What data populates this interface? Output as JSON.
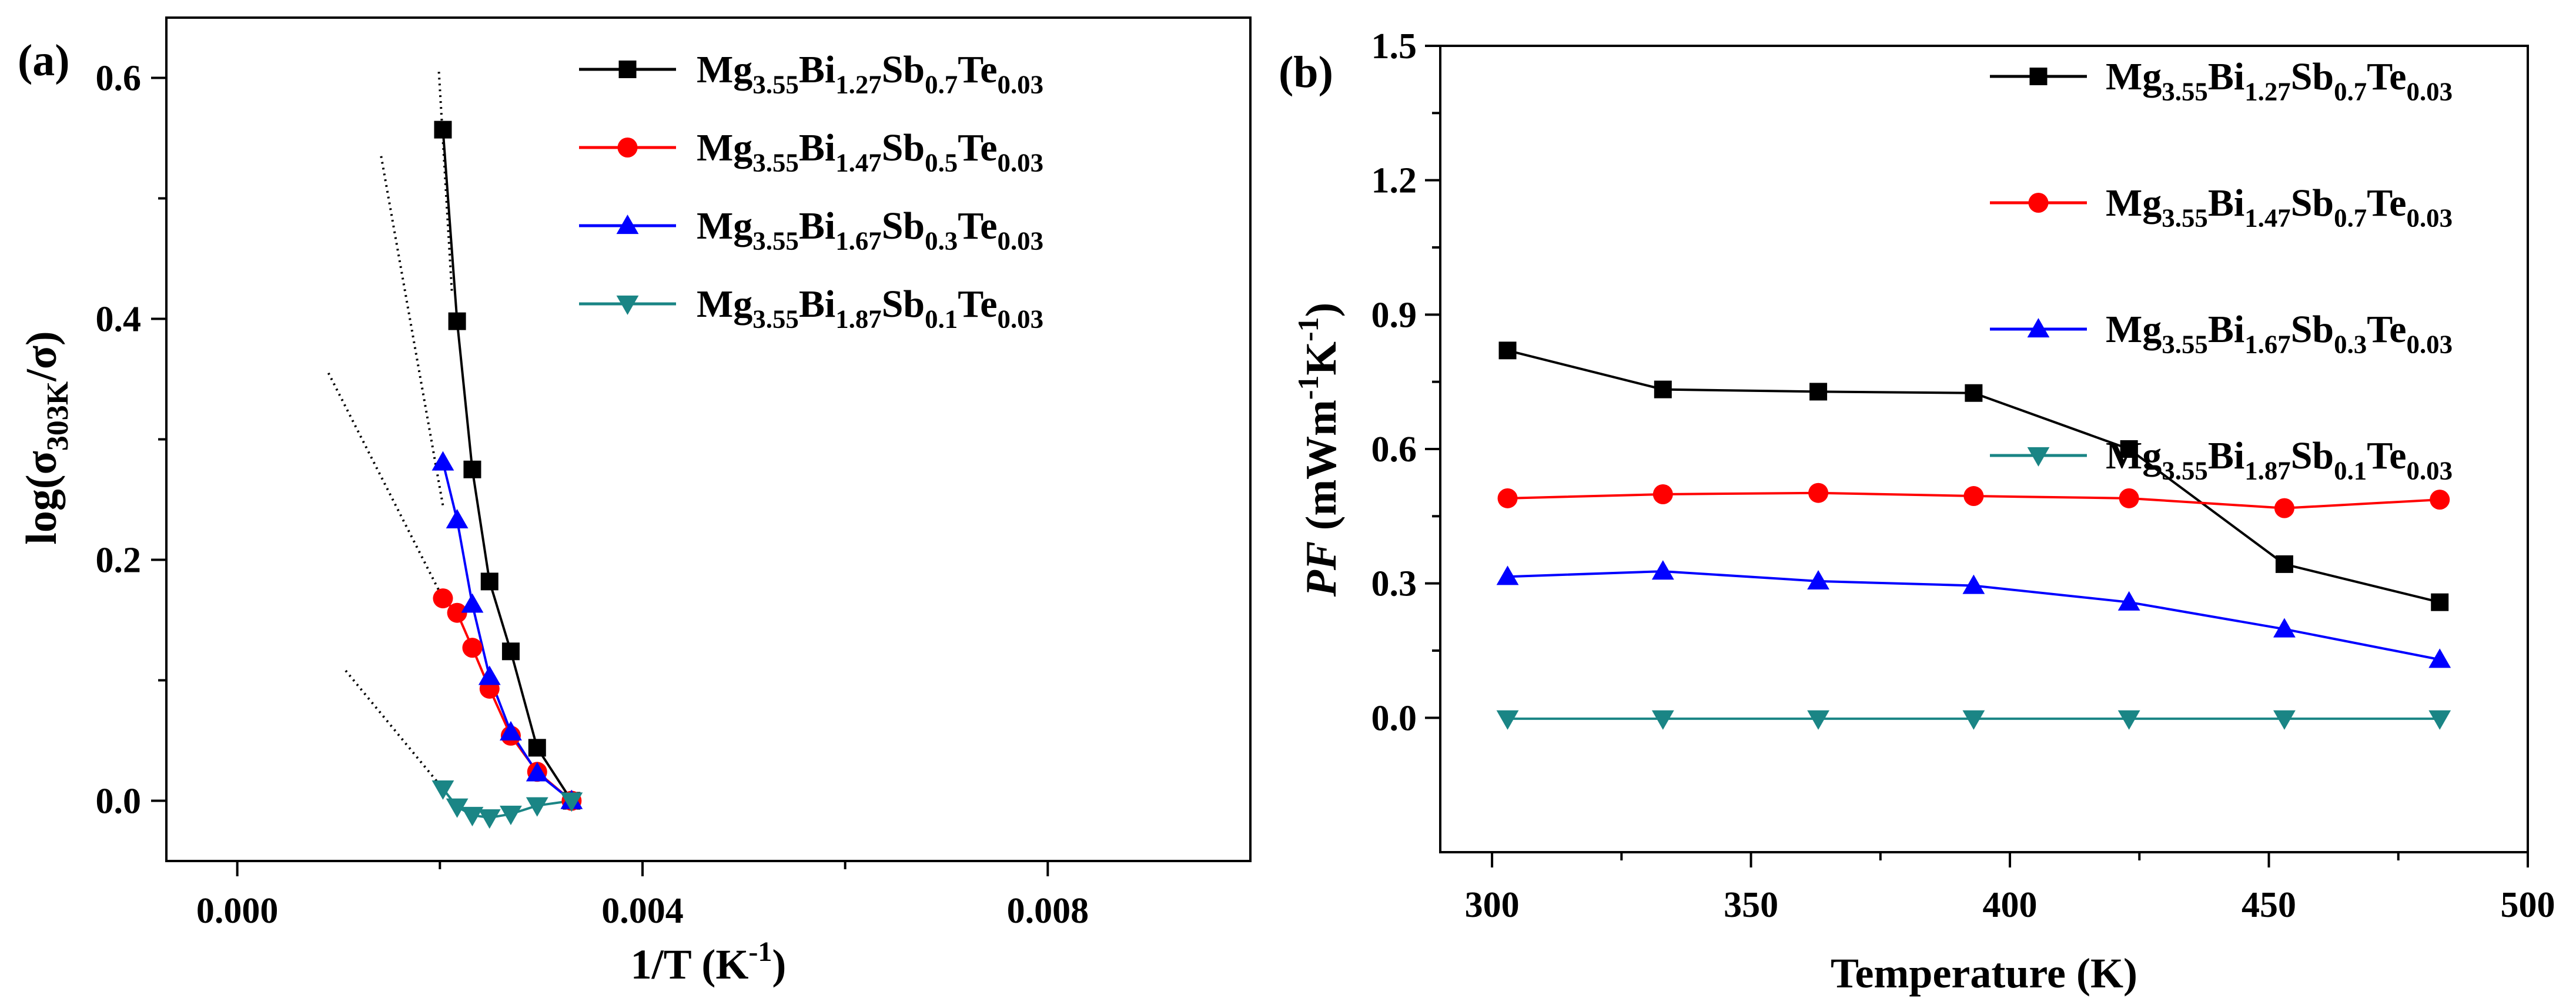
{
  "chart_data": [
    {
      "panel_label": "(a)",
      "type": "line",
      "xlabel": "1/T (K",
      "xlabel_sup": "-1",
      "xlabel_end": ")",
      "ylabel": "log(σ",
      "ylabel_sub": "303K",
      "ylabel_end": "/σ)",
      "xlim": [
        -0.0007,
        0.01
      ],
      "ylim": [
        -0.05,
        0.65
      ],
      "xticks": [
        0.0,
        0.004,
        0.008
      ],
      "xtick_labels": [
        "0.000",
        "0.004",
        "0.008"
      ],
      "yticks": [
        0.0,
        0.2,
        0.4,
        0.6
      ],
      "ytick_labels": [
        "0.0",
        "0.2",
        "0.4",
        "0.6"
      ],
      "legend_position": "top-right",
      "series": [
        {
          "name": "Mg3.55Bi1.27Sb0.7Te0.03",
          "legend": [
            [
              "Mg",
              ""
            ],
            [
              "3.55",
              "sub"
            ],
            [
              "Bi",
              ""
            ],
            [
              "1.27",
              "sub"
            ],
            [
              "Sb",
              ""
            ],
            [
              "0.7",
              "sub"
            ],
            [
              "Te",
              ""
            ],
            [
              "0.03",
              "sub"
            ]
          ],
          "color": "#000000",
          "marker": "square",
          "x": [
            0.00203,
            0.00217,
            0.00232,
            0.00249,
            0.0027,
            0.00296,
            0.0033
          ],
          "y": [
            0.557,
            0.398,
            0.275,
            0.182,
            0.124,
            0.044,
            0.0
          ]
        },
        {
          "name": "Mg3.55Bi1.47Sb0.5Te0.03",
          "legend": [
            [
              "Mg",
              ""
            ],
            [
              "3.55",
              "sub"
            ],
            [
              "Bi",
              ""
            ],
            [
              "1.47",
              "sub"
            ],
            [
              "Sb",
              ""
            ],
            [
              "0.5",
              "sub"
            ],
            [
              "Te",
              ""
            ],
            [
              "0.03",
              "sub"
            ]
          ],
          "color": "#ff0000",
          "marker": "circle",
          "x": [
            0.00203,
            0.00217,
            0.00232,
            0.00249,
            0.0027,
            0.00296,
            0.0033
          ],
          "y": [
            0.168,
            0.156,
            0.127,
            0.093,
            0.054,
            0.024,
            0.0
          ]
        },
        {
          "name": "Mg3.55Bi1.67Sb0.3Te0.03",
          "legend": [
            [
              "Mg",
              ""
            ],
            [
              "3.55",
              "sub"
            ],
            [
              "Bi",
              ""
            ],
            [
              "1.67",
              "sub"
            ],
            [
              "Sb",
              ""
            ],
            [
              "0.3",
              "sub"
            ],
            [
              "Te",
              ""
            ],
            [
              "0.03",
              "sub"
            ]
          ],
          "color": "#0000ff",
          "marker": "triangle-up",
          "x": [
            0.00203,
            0.00217,
            0.00232,
            0.00249,
            0.0027,
            0.00296,
            0.0033
          ],
          "y": [
            0.281,
            0.233,
            0.163,
            0.103,
            0.057,
            0.023,
            0.0
          ]
        },
        {
          "name": "Mg3.55Bi1.87Sb0.1Te0.03",
          "legend": [
            [
              "Mg",
              ""
            ],
            [
              "3.55",
              "sub"
            ],
            [
              "Bi",
              ""
            ],
            [
              "1.87",
              "sub"
            ],
            [
              "Sb",
              ""
            ],
            [
              "0.1",
              "sub"
            ],
            [
              "Te",
              ""
            ],
            [
              "0.03",
              "sub"
            ]
          ],
          "color": "#1a8585",
          "marker": "triangle-down",
          "x": [
            0.00203,
            0.00217,
            0.00232,
            0.00249,
            0.0027,
            0.00296,
            0.0033
          ],
          "y": [
            0.01,
            -0.005,
            -0.012,
            -0.014,
            -0.011,
            -0.004,
            0.0
          ]
        }
      ],
      "fit_lines": [
        {
          "x": [
            0.00199,
            0.00212
          ],
          "y": [
            0.605,
            0.42
          ]
        },
        {
          "x": [
            0.00142,
            0.00203
          ],
          "y": [
            0.535,
            0.245
          ]
        },
        {
          "x": [
            0.0009,
            0.00203
          ],
          "y": [
            0.355,
            0.168
          ]
        },
        {
          "x": [
            0.00107,
            0.00203
          ],
          "y": [
            0.108,
            0.01
          ]
        }
      ]
    },
    {
      "panel_label": "(b)",
      "type": "line",
      "xlabel": "Temperature (K)",
      "ylabel_italic": "PF",
      "ylabel_rest": " (mWm",
      "ylabel_sup1": "-1",
      "ylabel_mid": "K",
      "ylabel_sup2": "-1",
      "ylabel_end": ")",
      "xlim": [
        290,
        500
      ],
      "ylim": [
        -0.3,
        1.5
      ],
      "xticks": [
        300,
        350,
        400,
        450,
        500
      ],
      "xtick_labels": [
        "300",
        "350",
        "400",
        "450",
        "500"
      ],
      "yticks": [
        0.0,
        0.3,
        0.6,
        0.9,
        1.2,
        1.5
      ],
      "ytick_labels": [
        "0.0",
        "0.3",
        "0.6",
        "0.9",
        "1.2",
        "1.5"
      ],
      "legend_position": "top-right",
      "series": [
        {
          "name": "Mg3.55Bi1.27Sb0.7Te0.03",
          "legend": [
            [
              "Mg",
              ""
            ],
            [
              "3.55",
              "sub"
            ],
            [
              "Bi",
              ""
            ],
            [
              "1.27",
              "sub"
            ],
            [
              "Sb",
              ""
            ],
            [
              "0.7",
              "sub"
            ],
            [
              "Te",
              ""
            ],
            [
              "0.03",
              "sub"
            ]
          ],
          "color": "#000000",
          "marker": "square",
          "x": [
            303,
            333,
            363,
            393,
            423,
            453,
            483
          ],
          "y": [
            0.82,
            0.733,
            0.728,
            0.725,
            0.6,
            0.343,
            0.258
          ]
        },
        {
          "name": "Mg3.55Bi1.47Sb0.7Te0.03",
          "legend": [
            [
              "Mg",
              ""
            ],
            [
              "3.55",
              "sub"
            ],
            [
              "Bi",
              ""
            ],
            [
              "1.47",
              "sub"
            ],
            [
              "Sb",
              ""
            ],
            [
              "0.7",
              "sub"
            ],
            [
              "Te",
              ""
            ],
            [
              "0.03",
              "sub"
            ]
          ],
          "color": "#ff0000",
          "marker": "circle",
          "x": [
            303,
            333,
            363,
            393,
            423,
            453,
            483
          ],
          "y": [
            0.49,
            0.499,
            0.502,
            0.495,
            0.49,
            0.468,
            0.487
          ]
        },
        {
          "name": "Mg3.55Bi1.67Sb0.3Te0.03",
          "legend": [
            [
              "Mg",
              ""
            ],
            [
              "3.55",
              "sub"
            ],
            [
              "Bi",
              ""
            ],
            [
              "1.67",
              "sub"
            ],
            [
              "Sb",
              ""
            ],
            [
              "0.3",
              "sub"
            ],
            [
              "Te",
              ""
            ],
            [
              "0.03",
              "sub"
            ]
          ],
          "color": "#0000ff",
          "marker": "triangle-up",
          "x": [
            303,
            333,
            363,
            393,
            423,
            453,
            483
          ],
          "y": [
            0.315,
            0.327,
            0.305,
            0.295,
            0.258,
            0.198,
            0.13
          ]
        },
        {
          "name": "Mg3.55Bi1.87Sb0.1Te0.03",
          "legend": [
            [
              "Mg",
              ""
            ],
            [
              "3.55",
              "sub"
            ],
            [
              "Bi",
              ""
            ],
            [
              "1.87",
              "sub"
            ],
            [
              "Sb",
              ""
            ],
            [
              "0.1",
              "sub"
            ],
            [
              "Te",
              ""
            ],
            [
              "0.03",
              "sub"
            ]
          ],
          "color": "#1a8585",
          "marker": "triangle-down",
          "x": [
            303,
            333,
            363,
            393,
            423,
            453,
            483
          ],
          "y": [
            -0.002,
            -0.002,
            -0.002,
            -0.002,
            -0.002,
            -0.002,
            -0.002
          ]
        }
      ]
    }
  ]
}
